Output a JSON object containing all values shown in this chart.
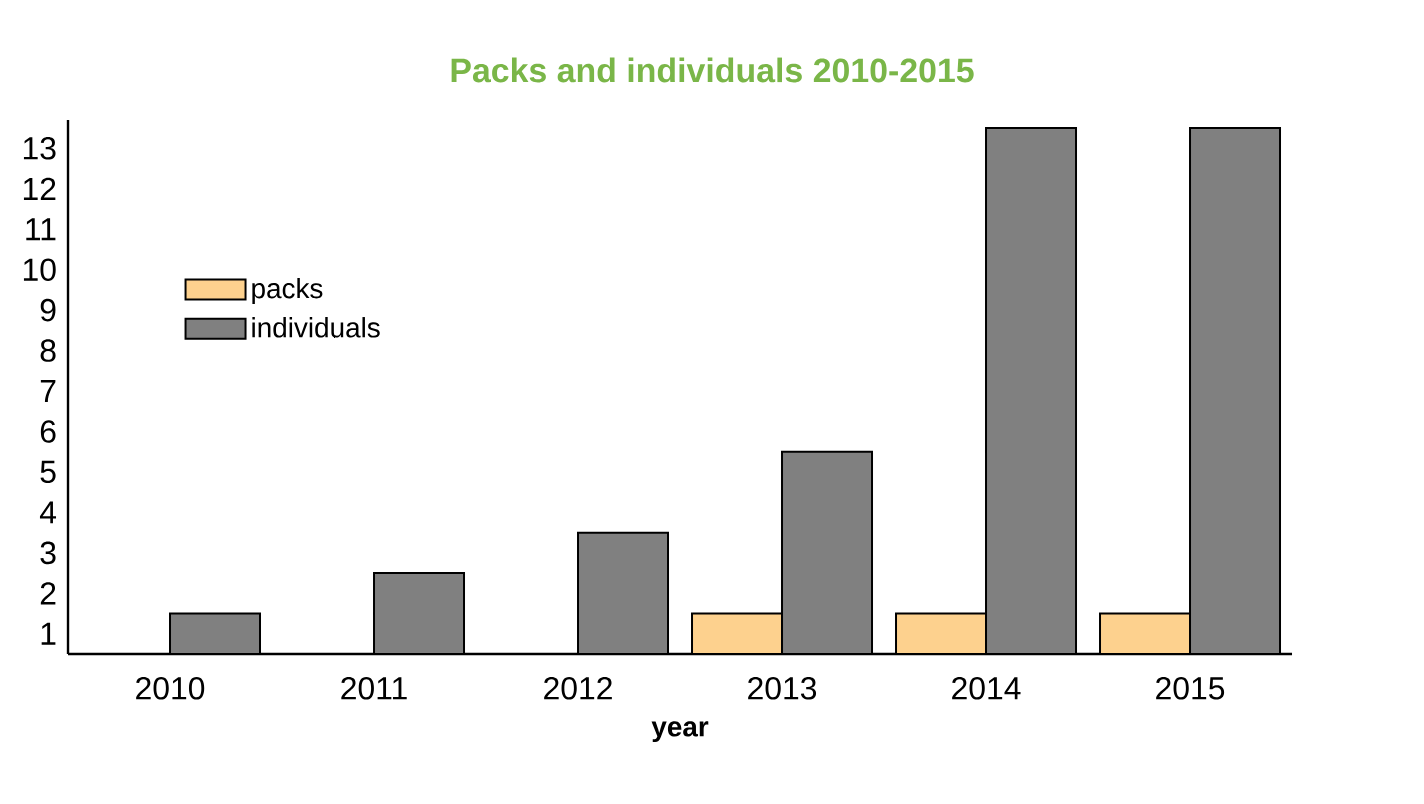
{
  "chart_data": {
    "type": "bar",
    "title": "Packs and individuals 2010-2015",
    "xlabel": "year",
    "categories": [
      "2010",
      "2011",
      "2012",
      "2013",
      "2014",
      "2015"
    ],
    "series": [
      {
        "name": "packs",
        "color": "#fdd18e",
        "values": [
          0,
          0,
          0,
          1,
          1,
          1
        ]
      },
      {
        "name": "individuals",
        "color": "#808080",
        "values": [
          1,
          2,
          3,
          5,
          13,
          13
        ]
      }
    ],
    "ylim": [
      0,
      13.2
    ],
    "yticks": [
      {
        "value": 0.5,
        "label": "1"
      },
      {
        "value": 1.5,
        "label": "2"
      },
      {
        "value": 2.5,
        "label": "3"
      },
      {
        "value": 3.5,
        "label": "4"
      },
      {
        "value": 4.5,
        "label": "5"
      },
      {
        "value": 5.5,
        "label": "6"
      },
      {
        "value": 6.5,
        "label": "7"
      },
      {
        "value": 7.5,
        "label": "8"
      },
      {
        "value": 8.5,
        "label": "9"
      },
      {
        "value": 9.5,
        "label": "10"
      },
      {
        "value": 10.5,
        "label": "11"
      },
      {
        "value": 11.5,
        "label": "12"
      },
      {
        "value": 12.5,
        "label": "13"
      }
    ],
    "legend": "top left",
    "grid": false
  }
}
